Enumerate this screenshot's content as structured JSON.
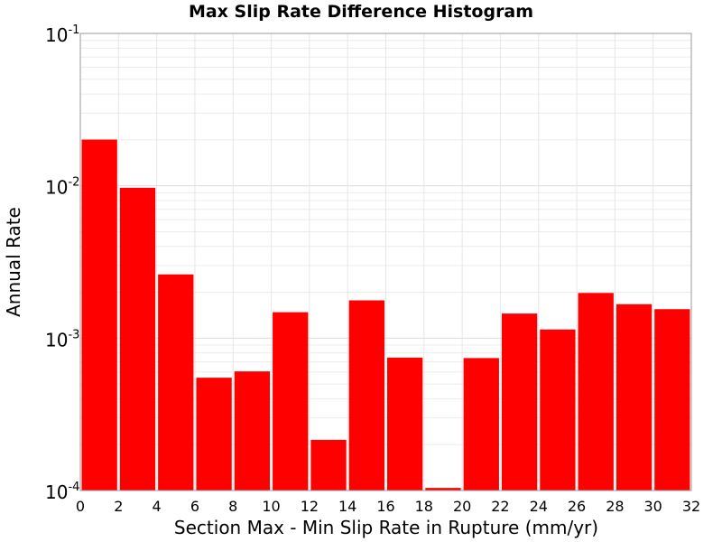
{
  "chart_data": {
    "type": "bar",
    "title": "Max Slip Rate Difference Histogram",
    "xlabel": "Section Max - Min Slip Rate in Rupture (mm/yr)",
    "ylabel": "Annual Rate",
    "yscale": "log",
    "ylim": [
      0.0001,
      0.1
    ],
    "xlim": [
      0,
      32
    ],
    "bin_width": 2,
    "x_ticks": [
      "0",
      "2",
      "4",
      "6",
      "8",
      "10",
      "12",
      "14",
      "16",
      "18",
      "20",
      "22",
      "24",
      "26",
      "28",
      "30",
      "32"
    ],
    "y_ticks": [
      {
        "base": "10",
        "exp": "-4"
      },
      {
        "base": "10",
        "exp": "-3"
      },
      {
        "base": "10",
        "exp": "-2"
      },
      {
        "base": "10",
        "exp": "-1"
      }
    ],
    "bar_color": "#ff0000",
    "grid": true,
    "bins": [
      {
        "x0": 0,
        "x1": 2,
        "value": 0.0201
      },
      {
        "x0": 2,
        "x1": 4,
        "value": 0.0097
      },
      {
        "x0": 4,
        "x1": 6,
        "value": 0.00262
      },
      {
        "x0": 6,
        "x1": 8,
        "value": 0.00055
      },
      {
        "x0": 8,
        "x1": 10,
        "value": 0.000605
      },
      {
        "x0": 10,
        "x1": 12,
        "value": 0.00148
      },
      {
        "x0": 12,
        "x1": 14,
        "value": 0.000215
      },
      {
        "x0": 14,
        "x1": 16,
        "value": 0.00177
      },
      {
        "x0": 16,
        "x1": 18,
        "value": 0.000745
      },
      {
        "x0": 18,
        "x1": 20,
        "value": 0.000104
      },
      {
        "x0": 20,
        "x1": 22,
        "value": 0.00074
      },
      {
        "x0": 22,
        "x1": 24,
        "value": 0.00145
      },
      {
        "x0": 24,
        "x1": 26,
        "value": 0.00114
      },
      {
        "x0": 26,
        "x1": 28,
        "value": 0.00198
      },
      {
        "x0": 28,
        "x1": 30,
        "value": 0.00167
      },
      {
        "x0": 30,
        "x1": 32,
        "value": 0.00155
      }
    ]
  }
}
